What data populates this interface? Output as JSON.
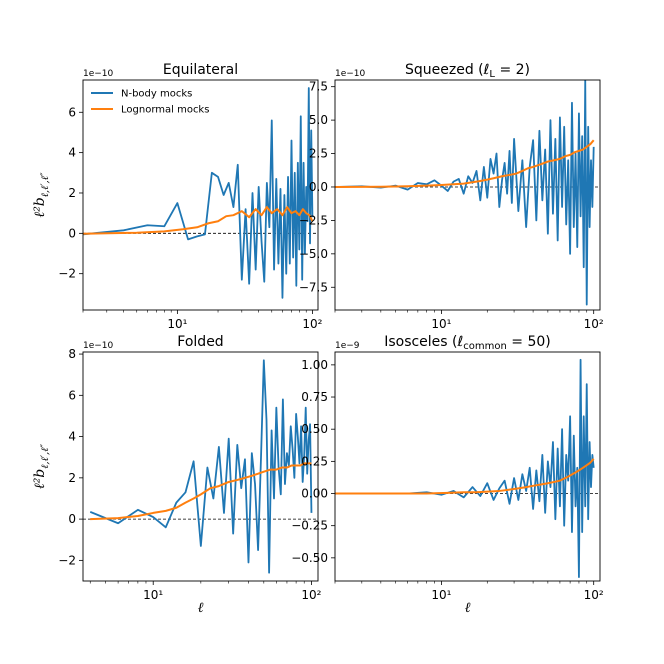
{
  "figure": {
    "ylabel": "ℓ²b",
    "ylabel_sub": "ℓ,ℓ′,ℓ″",
    "xlabel": "ℓ",
    "colors": {
      "nbody": "#1f77b4",
      "lognormal": "#ff7f0e"
    }
  },
  "chart_data": [
    {
      "type": "line",
      "title": "Equilateral",
      "multiplier": "1e−10",
      "xscale": "log",
      "xlim": [
        2,
        110
      ],
      "ylim": [
        -3.8,
        7.6
      ],
      "yticks": [
        -2,
        0,
        2,
        4,
        6
      ],
      "ytick_labels": [
        "−2",
        "0",
        "2",
        "4",
        "6"
      ],
      "xticks": [
        10,
        100
      ],
      "xtick_labels": [
        "10¹",
        "10²"
      ],
      "hline": 0,
      "legend": {
        "placement": "top-left",
        "entries": [
          "N-body mocks",
          "Lognormal mocks"
        ]
      },
      "series": [
        {
          "name": "N-body mocks",
          "color": "#1f77b4",
          "x": [
            2,
            4,
            6,
            8,
            10,
            12,
            14,
            16,
            18,
            20,
            22,
            24,
            26,
            28,
            30,
            32,
            34,
            36,
            38,
            40,
            42,
            44,
            46,
            48,
            50,
            52,
            54,
            56,
            58,
            60,
            62,
            64,
            66,
            68,
            70,
            72,
            74,
            76,
            78,
            80,
            82,
            84,
            86,
            88,
            90,
            92,
            94,
            96,
            98,
            100
          ],
          "y": [
            -0.05,
            0.15,
            0.4,
            0.35,
            1.5,
            -0.3,
            -0.15,
            -0.05,
            3.0,
            2.8,
            1.9,
            2.5,
            1.3,
            3.4,
            -2.3,
            1.2,
            -2.5,
            2.0,
            -1.8,
            2.3,
            -0.4,
            -2.4,
            2.5,
            0.3,
            5.6,
            -1.8,
            2.7,
            -1.5,
            2.2,
            -3.2,
            1.9,
            -2.0,
            2.8,
            -1.5,
            4.6,
            -1.2,
            3.0,
            -2.6,
            3.5,
            -0.8,
            5.8,
            -2.3,
            3.5,
            -1.0,
            2.3,
            0.6,
            7.2,
            -0.5,
            5.1,
            0.8
          ]
        },
        {
          "name": "Lognormal mocks",
          "color": "#ff7f0e",
          "x": [
            2,
            5,
            8,
            11,
            14,
            17,
            20,
            23,
            26,
            30,
            34,
            38,
            42,
            46,
            50,
            55,
            60,
            65,
            70,
            75,
            80,
            85,
            90,
            95,
            100
          ],
          "y": [
            -0.02,
            0.03,
            0.1,
            0.2,
            0.3,
            0.5,
            0.6,
            0.85,
            0.9,
            1.1,
            0.8,
            1.2,
            0.9,
            1.3,
            1.0,
            1.2,
            0.9,
            1.3,
            1.0,
            1.1,
            0.9,
            1.2,
            1.0,
            0.9,
            0.6
          ]
        }
      ]
    },
    {
      "type": "line",
      "title": "Squeezed (ℓ",
      "title_sub": "L",
      "title_tail": " = 2)",
      "multiplier": "1e−10",
      "xscale": "log",
      "xlim": [
        2,
        110
      ],
      "ylim": [
        -9.2,
        8.0
      ],
      "yticks": [
        -7.5,
        -5.0,
        -2.5,
        0.0,
        2.5,
        5.0,
        7.5
      ],
      "ytick_labels": [
        "−7.5",
        "−5.0",
        "−2.5",
        "0.0",
        "2.5",
        "5.0",
        "7.5"
      ],
      "xticks": [
        10,
        100
      ],
      "xtick_labels": [
        "10¹",
        "10²"
      ],
      "hline": 0,
      "series": [
        {
          "name": "N-body mocks",
          "color": "#1f77b4",
          "x": [
            2,
            3,
            4,
            5,
            6,
            7,
            8,
            9,
            10,
            11,
            12,
            13,
            14,
            15,
            16,
            17,
            18,
            19,
            20,
            21,
            22,
            23,
            24,
            25,
            26,
            27,
            28,
            29,
            30,
            32,
            34,
            36,
            38,
            40,
            42,
            44,
            46,
            48,
            50,
            52,
            54,
            56,
            58,
            60,
            62,
            64,
            66,
            68,
            70,
            72,
            74,
            76,
            78,
            80,
            82,
            84,
            86,
            88,
            90,
            92,
            94,
            96,
            98,
            100
          ],
          "y": [
            0.0,
            0.05,
            -0.05,
            0.1,
            -0.2,
            0.3,
            0.2,
            0.5,
            0.1,
            -0.3,
            0.4,
            0.6,
            -0.5,
            0.8,
            0.3,
            1.2,
            -1.0,
            1.5,
            -0.8,
            2.1,
            1.0,
            2.5,
            -1.5,
            0.5,
            1.8,
            -0.5,
            2.7,
            -1.2,
            3.6,
            -1.8,
            2.0,
            -3.0,
            1.5,
            3.5,
            -2.5,
            4.2,
            -1.0,
            2.8,
            -3.5,
            5.0,
            -2.0,
            3.6,
            -4.0,
            5.2,
            -1.5,
            4.5,
            -2.8,
            2.0,
            -5.0,
            6.3,
            -3.0,
            2.5,
            -4.5,
            5.5,
            -2.2,
            3.8,
            -6.0,
            8.0,
            -8.8,
            4.5,
            -3.0,
            2.0,
            -1.5,
            3.0
          ]
        },
        {
          "name": "Lognormal mocks",
          "color": "#ff7f0e",
          "x": [
            2,
            4,
            6,
            8,
            10,
            12,
            14,
            16,
            18,
            20,
            22,
            25,
            28,
            31,
            34,
            37,
            40,
            45,
            50,
            55,
            60,
            65,
            70,
            75,
            80,
            85,
            90,
            95,
            100
          ],
          "y": [
            0.0,
            0.02,
            0.05,
            0.1,
            0.15,
            0.2,
            0.25,
            0.35,
            0.45,
            0.55,
            0.65,
            0.8,
            0.9,
            1.0,
            1.2,
            1.4,
            1.5,
            1.7,
            1.9,
            2.0,
            2.1,
            2.3,
            2.4,
            2.6,
            2.7,
            2.8,
            3.0,
            3.2,
            3.5
          ]
        }
      ]
    },
    {
      "type": "line",
      "title": "Folded",
      "multiplier": "1e−10",
      "xscale": "log",
      "xlim": [
        3.6,
        110
      ],
      "ylim": [
        -3.0,
        8.1
      ],
      "yticks": [
        -2,
        0,
        2,
        4,
        6,
        8
      ],
      "ytick_labels": [
        "−2",
        "0",
        "2",
        "4",
        "6",
        "8"
      ],
      "xticks": [
        10,
        100
      ],
      "xtick_labels": [
        "10¹",
        "10²"
      ],
      "hline": 0,
      "series": [
        {
          "name": "N-body mocks",
          "color": "#1f77b4",
          "x": [
            4,
            6,
            8,
            10,
            12,
            14,
            16,
            18,
            20,
            22,
            24,
            26,
            28,
            30,
            32,
            34,
            36,
            38,
            40,
            42,
            44,
            46,
            48,
            50,
            52,
            54,
            56,
            58,
            60,
            62,
            64,
            66,
            68,
            70,
            72,
            74,
            76,
            78,
            80,
            82,
            84,
            86,
            88,
            90,
            92,
            94,
            96,
            98,
            100
          ],
          "y": [
            0.35,
            -0.2,
            0.45,
            0.1,
            -0.4,
            0.8,
            1.3,
            2.8,
            -1.3,
            2.5,
            1.0,
            3.5,
            0.3,
            3.9,
            -0.7,
            3.6,
            1.5,
            2.9,
            -2.1,
            3.2,
            1.7,
            -1.5,
            3.0,
            7.7,
            4.8,
            -2.6,
            4.3,
            1.0,
            5.4,
            2.5,
            1.2,
            5.8,
            1.7,
            3.2,
            2.6,
            4.5,
            3.4,
            2.0,
            5.1,
            4.0,
            2.7,
            4.5,
            1.8,
            3.1,
            5.4,
            2.2,
            3.8,
            4.6,
            0.3
          ]
        },
        {
          "name": "Lognormal mocks",
          "color": "#ff7f0e",
          "x": [
            4,
            6,
            8,
            10,
            12,
            14,
            16,
            18,
            20,
            23,
            26,
            30,
            34,
            38,
            42,
            46,
            50,
            55,
            60,
            65,
            70,
            75,
            80,
            85,
            90,
            95,
            100
          ],
          "y": [
            0.0,
            0.05,
            0.15,
            0.3,
            0.4,
            0.55,
            0.8,
            1.0,
            1.2,
            1.5,
            1.6,
            1.8,
            1.9,
            2.0,
            2.1,
            2.2,
            2.3,
            2.4,
            2.4,
            2.5,
            2.5,
            2.6,
            2.6,
            2.6,
            2.7,
            2.7,
            2.7
          ]
        }
      ]
    },
    {
      "type": "line",
      "title": "Isosceles (ℓ",
      "title_sub": "common",
      "title_tail": " = 50)",
      "multiplier": "1e−9",
      "xscale": "log",
      "xlim": [
        2,
        110
      ],
      "ylim": [
        -0.68,
        1.1
      ],
      "yticks": [
        -0.5,
        -0.25,
        0.0,
        0.25,
        0.5,
        0.75,
        1.0
      ],
      "ytick_labels": [
        "−0.50",
        "−0.25",
        "0.00",
        "0.25",
        "0.50",
        "0.75",
        "1.00"
      ],
      "xticks": [
        10,
        100
      ],
      "xtick_labels": [
        "10¹",
        "10²"
      ],
      "hline": 0,
      "series": [
        {
          "name": "N-body mocks",
          "color": "#1f77b4",
          "x": [
            2,
            4,
            6,
            8,
            10,
            12,
            14,
            16,
            18,
            20,
            22,
            24,
            26,
            28,
            30,
            32,
            34,
            36,
            38,
            40,
            42,
            44,
            46,
            48,
            50,
            52,
            54,
            56,
            58,
            60,
            62,
            64,
            66,
            68,
            70,
            72,
            74,
            76,
            78,
            80,
            82,
            84,
            86,
            88,
            90,
            92,
            94,
            96,
            98,
            100
          ],
          "y": [
            0.0,
            0.0,
            0.0,
            0.01,
            -0.01,
            0.02,
            -0.03,
            0.05,
            -0.02,
            0.08,
            -0.05,
            0.04,
            0.1,
            -0.08,
            0.12,
            -0.05,
            0.15,
            0.02,
            0.2,
            -0.12,
            0.18,
            -0.06,
            0.3,
            -0.15,
            0.25,
            0.05,
            0.4,
            -0.2,
            0.35,
            -0.1,
            0.5,
            -0.25,
            0.3,
            0.1,
            0.6,
            -0.3,
            0.45,
            -0.1,
            0.2,
            -0.65,
            1.04,
            -0.3,
            0.6,
            -0.1,
            0.85,
            -0.2,
            0.4,
            0.05,
            0.3,
            0.2
          ]
        },
        {
          "name": "Lognormal mocks",
          "color": "#ff7f0e",
          "x": [
            2,
            5,
            8,
            11,
            14,
            17,
            20,
            24,
            28,
            32,
            36,
            40,
            45,
            50,
            55,
            60,
            65,
            70,
            75,
            80,
            85,
            90,
            95,
            100
          ],
          "y": [
            0.0,
            0.0,
            0.0,
            0.005,
            0.01,
            0.01,
            0.015,
            0.02,
            0.03,
            0.04,
            0.05,
            0.06,
            0.07,
            0.08,
            0.09,
            0.1,
            0.12,
            0.14,
            0.16,
            0.18,
            0.2,
            0.22,
            0.24,
            0.27
          ]
        }
      ]
    }
  ]
}
